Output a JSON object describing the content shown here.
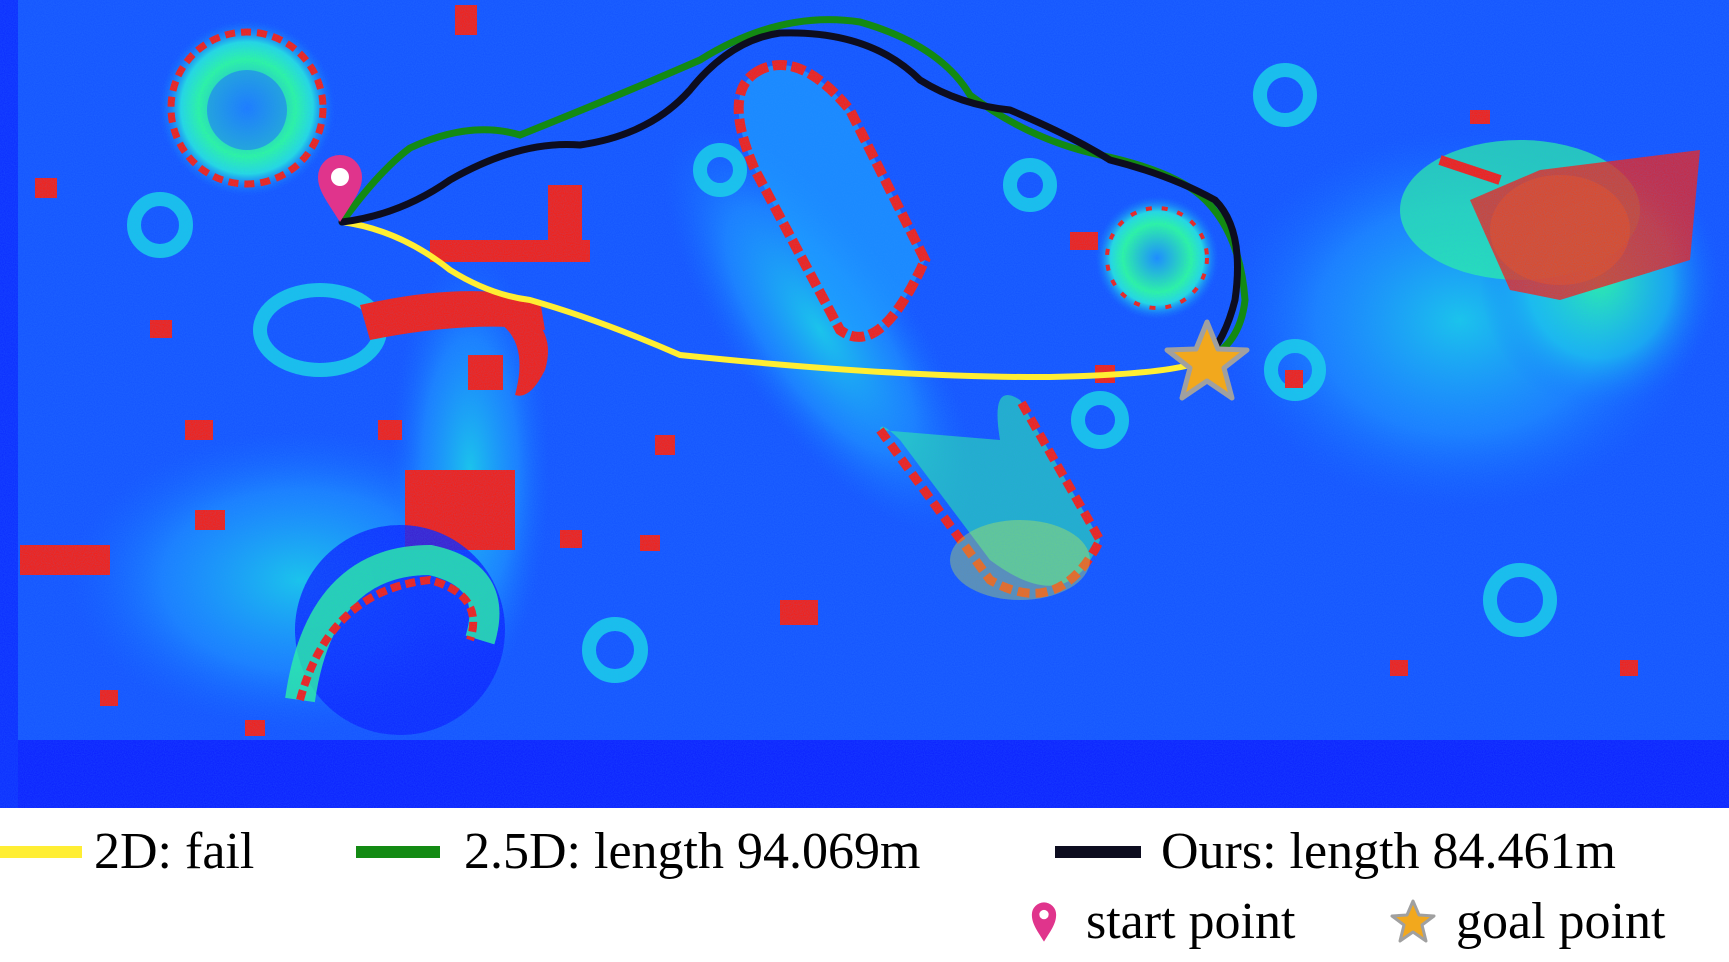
{
  "legend": {
    "items": [
      {
        "label": "2D: fail",
        "color": "#ffee33"
      },
      {
        "label": "2.5D: length 94.069m",
        "color": "#138a13"
      },
      {
        "label": "Ours: length 84.461m",
        "color": "#0d0d1f"
      }
    ],
    "markers": [
      {
        "label": "start point",
        "icon": "map-pin-icon",
        "color": "#e0348c"
      },
      {
        "label": "goal point",
        "icon": "star-icon",
        "color": "#f2a81d",
        "outline": "#a0a0a0"
      }
    ]
  },
  "map": {
    "colormap": [
      "#0a1dff",
      "#0f6cff",
      "#16d8e6",
      "#2bff9a",
      "#e8ff22",
      "#ff1a0a"
    ],
    "paths": {
      "2d_status": "fail",
      "2_5d_length_m": 94.069,
      "ours_length_m": 84.461
    }
  }
}
